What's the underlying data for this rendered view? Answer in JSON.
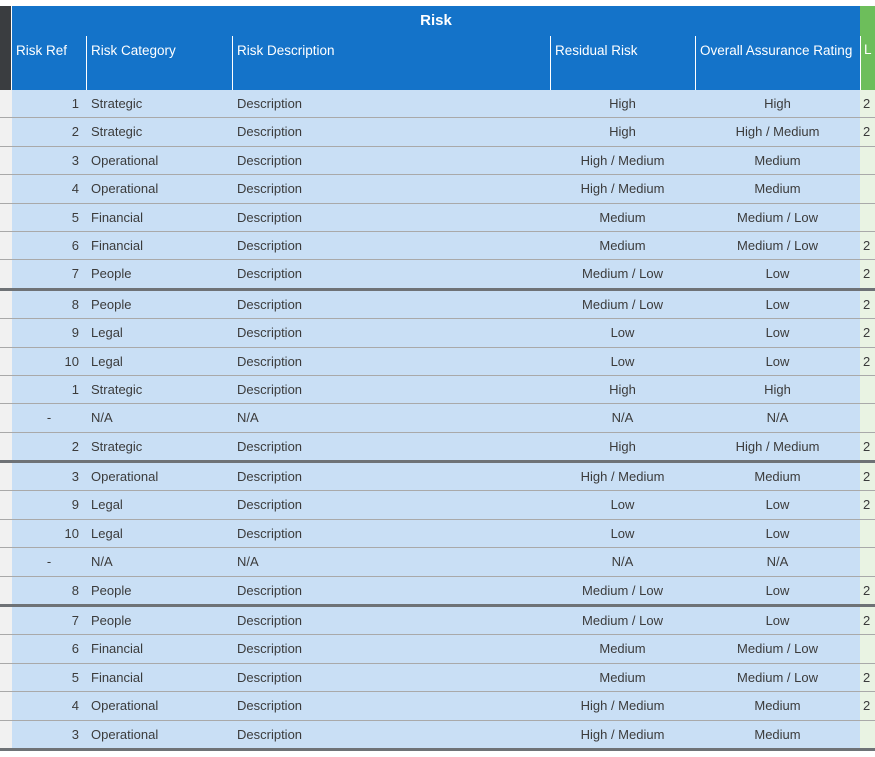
{
  "sheet": {
    "title": "Risk",
    "columns": [
      {
        "key": "ref",
        "label": "Risk Ref"
      },
      {
        "key": "category",
        "label": "Risk Category"
      },
      {
        "key": "description",
        "label": "Risk Description"
      },
      {
        "key": "residual",
        "label": "Residual Risk"
      },
      {
        "key": "overall",
        "label": "Overall Assurance Rating"
      }
    ],
    "truncated_column": {
      "label": "L",
      "note_visible_text_only": ""
    },
    "rows": [
      {
        "ref": "1",
        "category": "Strategic",
        "description": "Description",
        "residual": "High",
        "overall": "High",
        "last": "2",
        "thick_after": false
      },
      {
        "ref": "2",
        "category": "Strategic",
        "description": "Description",
        "residual": "High",
        "overall": "High / Medium",
        "last": "2",
        "thick_after": false
      },
      {
        "ref": "3",
        "category": "Operational",
        "description": "Description",
        "residual": "High / Medium",
        "overall": "Medium",
        "last": "",
        "thick_after": false
      },
      {
        "ref": "4",
        "category": "Operational",
        "description": "Description",
        "residual": "High / Medium",
        "overall": "Medium",
        "last": "",
        "thick_after": false
      },
      {
        "ref": "5",
        "category": "Financial",
        "description": "Description",
        "residual": "Medium",
        "overall": "Medium / Low",
        "last": "",
        "thick_after": false
      },
      {
        "ref": "6",
        "category": "Financial",
        "description": "Description",
        "residual": "Medium",
        "overall": "Medium / Low",
        "last": "2",
        "thick_after": false
      },
      {
        "ref": "7",
        "category": "People",
        "description": "Description",
        "residual": "Medium / Low",
        "overall": "Low",
        "last": "2",
        "thick_after": true
      },
      {
        "ref": "8",
        "category": "People",
        "description": "Description",
        "residual": "Medium / Low",
        "overall": "Low",
        "last": "2",
        "thick_after": false
      },
      {
        "ref": "9",
        "category": "Legal",
        "description": "Description",
        "residual": "Low",
        "overall": "Low",
        "last": "2",
        "thick_after": false
      },
      {
        "ref": "10",
        "category": "Legal",
        "description": "Description",
        "residual": "Low",
        "overall": "Low",
        "last": "2",
        "thick_after": false
      },
      {
        "ref": "1",
        "category": "Strategic",
        "description": "Description",
        "residual": "High",
        "overall": "High",
        "last": "",
        "thick_after": false
      },
      {
        "ref": "-",
        "category": "N/A",
        "description": "N/A",
        "residual": "N/A",
        "overall": "N/A",
        "last": "",
        "thick_after": false
      },
      {
        "ref": "2",
        "category": "Strategic",
        "description": "Description",
        "residual": "High",
        "overall": "High / Medium",
        "last": "2",
        "thick_after": true
      },
      {
        "ref": "3",
        "category": "Operational",
        "description": "Description",
        "residual": "High / Medium",
        "overall": "Medium",
        "last": "2",
        "thick_after": false
      },
      {
        "ref": "9",
        "category": "Legal",
        "description": "Description",
        "residual": "Low",
        "overall": "Low",
        "last": "2",
        "thick_after": false
      },
      {
        "ref": "10",
        "category": "Legal",
        "description": "Description",
        "residual": "Low",
        "overall": "Low",
        "last": "",
        "thick_after": false
      },
      {
        "ref": "-",
        "category": "N/A",
        "description": "N/A",
        "residual": "N/A",
        "overall": "N/A",
        "last": "",
        "thick_after": false
      },
      {
        "ref": "8",
        "category": "People",
        "description": "Description",
        "residual": "Medium / Low",
        "overall": "Low",
        "last": "2",
        "thick_after": true
      },
      {
        "ref": "7",
        "category": "People",
        "description": "Description",
        "residual": "Medium / Low",
        "overall": "Low",
        "last": "2",
        "thick_after": false
      },
      {
        "ref": "6",
        "category": "Financial",
        "description": "Description",
        "residual": "Medium",
        "overall": "Medium / Low",
        "last": "",
        "thick_after": false
      },
      {
        "ref": "5",
        "category": "Financial",
        "description": "Description",
        "residual": "Medium",
        "overall": "Medium / Low",
        "last": "2",
        "thick_after": false
      },
      {
        "ref": "4",
        "category": "Operational",
        "description": "Description",
        "residual": "High / Medium",
        "overall": "Medium",
        "last": "2",
        "thick_after": false
      },
      {
        "ref": "3",
        "category": "Operational",
        "description": "Description",
        "residual": "High / Medium",
        "overall": "Medium",
        "last": "",
        "thick_after": true
      }
    ]
  },
  "colors": {
    "header_blue": "#1473c9",
    "row_blue": "#c9dff5",
    "header_green": "#6dbe5b",
    "row_green": "#e9f3e3",
    "gutter_gray": "#f1f1f1",
    "gutter_dark": "#3a3d40",
    "thin_divider": "#a9a9a9",
    "thick_divider": "#6e7276",
    "text_dark": "#3b3b3b",
    "text_light": "#ffffff"
  }
}
